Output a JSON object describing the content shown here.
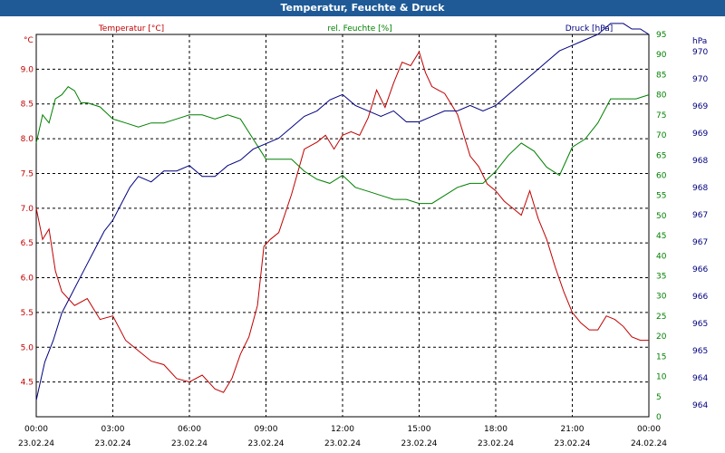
{
  "title": "Temperatur, Feuchte & Druck",
  "chart_data": {
    "type": "line",
    "title": "Temperatur, Feuchte & Druck",
    "x_start": "23.02.24 00:00",
    "x_end": "24.02.24 00:00",
    "x_ticks": [
      {
        "time": "00:00",
        "date": "23.02.24"
      },
      {
        "time": "03:00",
        "date": "23.02.24"
      },
      {
        "time": "06:00",
        "date": "23.02.24"
      },
      {
        "time": "09:00",
        "date": "23.02.24"
      },
      {
        "time": "12:00",
        "date": "23.02.24"
      },
      {
        "time": "15:00",
        "date": "23.02.24"
      },
      {
        "time": "18:00",
        "date": "23.02.24"
      },
      {
        "time": "21:00",
        "date": "23.02.24"
      },
      {
        "time": "00:00",
        "date": "24.02.24"
      }
    ],
    "grid": true,
    "axes": {
      "left": {
        "unit": "°C",
        "ylim": [
          4.0,
          9.5
        ],
        "ticks": [
          "4.5",
          "5.0",
          "5.5",
          "6.0",
          "6.5",
          "7.0",
          "7.5",
          "8.0",
          "8.5",
          "9.0"
        ],
        "color": "#c00000"
      },
      "right1": {
        "unit": "%",
        "ylim": [
          0,
          95
        ],
        "ticks": [
          "0",
          "5",
          "10",
          "15",
          "20",
          "25",
          "30",
          "35",
          "40",
          "45",
          "50",
          "55",
          "60",
          "65",
          "70",
          "75",
          "80",
          "85",
          "90",
          "95"
        ],
        "color": "#008000"
      },
      "right2": {
        "unit": "hPa",
        "ylim": [
          963.6,
          970.6
        ],
        "ticks": [
          "964",
          "964",
          "965",
          "965",
          "966",
          "966",
          "967",
          "967",
          "968",
          "968",
          "969",
          "969",
          "970",
          "970"
        ],
        "color": "#000080"
      }
    },
    "series": [
      {
        "name": "Temperatur [°C]",
        "axis": "left",
        "color": "#c00000",
        "x": [
          "00:00",
          "00:15",
          "00:30",
          "00:45",
          "01:00",
          "01:30",
          "02:00",
          "02:30",
          "03:00",
          "03:30",
          "04:00",
          "04:30",
          "05:00",
          "05:30",
          "06:00",
          "06:30",
          "07:00",
          "07:20",
          "07:40",
          "08:00",
          "08:20",
          "08:40",
          "08:55",
          "09:10",
          "09:30",
          "10:00",
          "10:30",
          "11:00",
          "11:20",
          "11:40",
          "12:00",
          "12:20",
          "12:40",
          "13:00",
          "13:20",
          "13:40",
          "14:00",
          "14:20",
          "14:40",
          "15:00",
          "15:15",
          "15:30",
          "15:45",
          "16:00",
          "16:30",
          "17:00",
          "17:20",
          "17:40",
          "18:00",
          "18:20",
          "18:40",
          "19:00",
          "19:20",
          "19:40",
          "20:00",
          "20:20",
          "20:40",
          "21:00",
          "21:20",
          "21:40",
          "22:00",
          "22:20",
          "22:40",
          "23:00",
          "23:20",
          "23:40",
          "24:00"
        ],
        "values": [
          7.0,
          6.55,
          6.7,
          6.1,
          5.8,
          5.6,
          5.7,
          5.4,
          5.45,
          5.1,
          4.95,
          4.8,
          4.75,
          4.55,
          4.5,
          4.6,
          4.4,
          4.35,
          4.55,
          4.9,
          5.15,
          5.6,
          6.45,
          6.55,
          6.65,
          7.2,
          7.85,
          7.95,
          8.05,
          7.85,
          8.05,
          8.1,
          8.05,
          8.3,
          8.7,
          8.45,
          8.8,
          9.1,
          9.05,
          9.25,
          8.95,
          8.75,
          8.7,
          8.65,
          8.35,
          7.75,
          7.6,
          7.35,
          7.25,
          7.1,
          7.0,
          6.9,
          7.25,
          6.85,
          6.55,
          6.15,
          5.8,
          5.5,
          5.35,
          5.25,
          5.25,
          5.45,
          5.4,
          5.3,
          5.15,
          5.1,
          5.1
        ]
      },
      {
        "name": "rel. Feuchte [%]",
        "axis": "right1",
        "color": "#008000",
        "x": [
          "00:00",
          "00:15",
          "00:30",
          "00:45",
          "01:00",
          "01:15",
          "01:30",
          "01:45",
          "02:00",
          "02:30",
          "03:00",
          "03:30",
          "04:00",
          "04:30",
          "05:00",
          "05:30",
          "06:00",
          "06:30",
          "07:00",
          "07:30",
          "08:00",
          "08:30",
          "09:00",
          "09:30",
          "10:00",
          "10:30",
          "11:00",
          "11:30",
          "12:00",
          "12:30",
          "13:00",
          "13:30",
          "14:00",
          "14:30",
          "15:00",
          "15:30",
          "16:00",
          "16:30",
          "17:00",
          "17:30",
          "18:00",
          "18:30",
          "19:00",
          "19:30",
          "20:00",
          "20:30",
          "21:00",
          "21:30",
          "22:00",
          "22:30",
          "23:00",
          "23:30",
          "24:00"
        ],
        "values": [
          68,
          75,
          73,
          79,
          80,
          82,
          81,
          78,
          78,
          77,
          74,
          73,
          72,
          73,
          73,
          74,
          75,
          75,
          74,
          75,
          74,
          69,
          64,
          64,
          64,
          61,
          59,
          58,
          60,
          57,
          56,
          55,
          54,
          54,
          53,
          53,
          55,
          57,
          58,
          58,
          61,
          65,
          68,
          66,
          62,
          60,
          67,
          69,
          73,
          79,
          79,
          79,
          80
        ]
      },
      {
        "name": "Druck [hPa]",
        "axis": "right2",
        "color": "#000080",
        "x": [
          "00:00",
          "00:20",
          "00:40",
          "01:00",
          "01:20",
          "01:40",
          "02:00",
          "02:20",
          "02:40",
          "03:00",
          "03:20",
          "03:40",
          "04:00",
          "04:30",
          "05:00",
          "05:30",
          "06:00",
          "06:30",
          "07:00",
          "07:30",
          "08:00",
          "08:30",
          "09:00",
          "09:30",
          "10:00",
          "10:30",
          "11:00",
          "11:30",
          "12:00",
          "12:30",
          "13:00",
          "13:30",
          "14:00",
          "14:30",
          "15:00",
          "15:30",
          "16:00",
          "16:30",
          "17:00",
          "17:30",
          "18:00",
          "18:30",
          "19:00",
          "19:30",
          "20:00",
          "20:30",
          "21:00",
          "21:30",
          "22:00",
          "22:30",
          "23:00",
          "23:20",
          "23:40",
          "24:00"
        ],
        "values": [
          963.9,
          964.6,
          965.0,
          965.5,
          965.8,
          966.1,
          966.4,
          966.7,
          967.0,
          967.2,
          967.5,
          967.8,
          968.0,
          967.9,
          968.1,
          968.1,
          968.2,
          968.0,
          968.0,
          968.2,
          968.3,
          968.5,
          968.6,
          968.7,
          968.9,
          969.1,
          969.2,
          969.4,
          969.5,
          969.3,
          969.2,
          969.1,
          969.2,
          969.0,
          969.0,
          969.1,
          969.2,
          969.2,
          969.3,
          969.2,
          969.3,
          969.5,
          969.7,
          969.9,
          970.1,
          970.3,
          970.4,
          970.5,
          970.6,
          970.8,
          970.8,
          970.7,
          970.7,
          970.6
        ]
      }
    ]
  }
}
